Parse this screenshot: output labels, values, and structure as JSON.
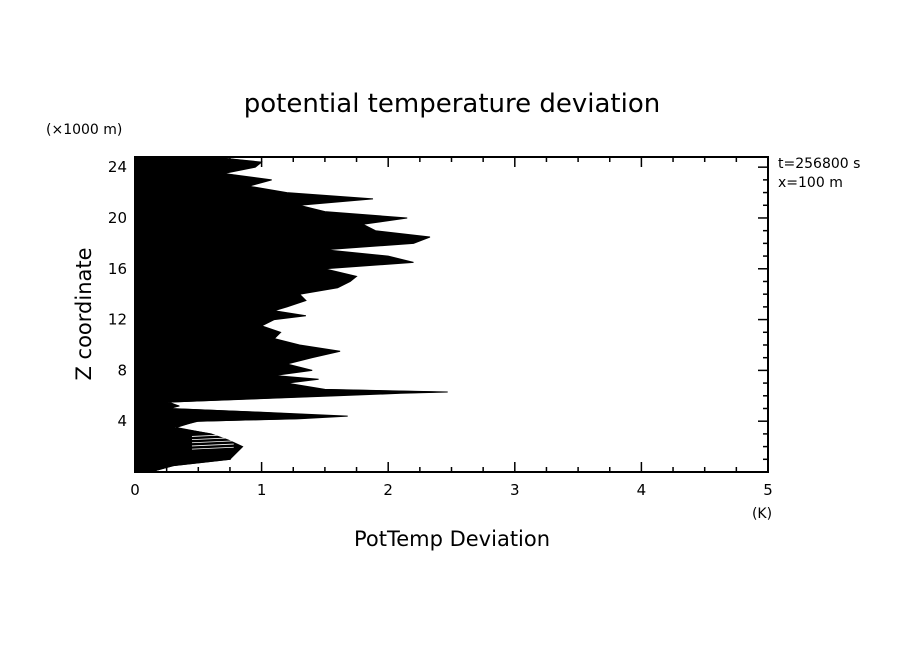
{
  "chart_data": {
    "type": "line",
    "title": "potential temperature deviation",
    "xlabel": "PotTemp Deviation",
    "ylabel": "Z coordinate",
    "x_unit": "(K)",
    "y_unit": "(×1000 m)",
    "xlim": [
      0,
      5
    ],
    "ylim": [
      0,
      24.8
    ],
    "xticks": [
      0,
      1,
      2,
      3,
      4,
      5
    ],
    "yticks": [
      4,
      8,
      12,
      16,
      20,
      24
    ],
    "grid": false,
    "annotations": [
      "t=256800 s",
      "x=100 m"
    ],
    "profile_max": [
      [
        0.0,
        0.12
      ],
      [
        0.5,
        0.3
      ],
      [
        1.0,
        0.75
      ],
      [
        1.5,
        0.8
      ],
      [
        2.0,
        0.85
      ],
      [
        2.5,
        0.74
      ],
      [
        3.0,
        0.6
      ],
      [
        3.5,
        0.3
      ],
      [
        4.0,
        0.5
      ],
      [
        4.2,
        1.3
      ],
      [
        4.4,
        1.68
      ],
      [
        4.7,
        1.0
      ],
      [
        5.0,
        0.25
      ],
      [
        5.2,
        0.35
      ],
      [
        5.5,
        0.25
      ],
      [
        6.0,
        1.6
      ],
      [
        6.2,
        2.1
      ],
      [
        6.3,
        2.47
      ],
      [
        6.5,
        1.5
      ],
      [
        7.0,
        1.2
      ],
      [
        7.3,
        1.45
      ],
      [
        7.6,
        1.1
      ],
      [
        8.0,
        1.4
      ],
      [
        8.5,
        1.2
      ],
      [
        9.0,
        1.4
      ],
      [
        9.5,
        1.62
      ],
      [
        10.0,
        1.3
      ],
      [
        10.5,
        1.1
      ],
      [
        11.0,
        1.15
      ],
      [
        11.5,
        1.0
      ],
      [
        12.0,
        1.1
      ],
      [
        12.3,
        1.35
      ],
      [
        12.7,
        1.1
      ],
      [
        13.0,
        1.2
      ],
      [
        13.5,
        1.35
      ],
      [
        14.0,
        1.3
      ],
      [
        14.5,
        1.6
      ],
      [
        15.0,
        1.7
      ],
      [
        15.4,
        1.75
      ],
      [
        16.0,
        1.5
      ],
      [
        16.5,
        2.2
      ],
      [
        17.0,
        2.0
      ],
      [
        17.5,
        1.5
      ],
      [
        18.0,
        2.2
      ],
      [
        18.5,
        2.33
      ],
      [
        19.0,
        1.9
      ],
      [
        19.5,
        1.8
      ],
      [
        20.0,
        2.15
      ],
      [
        20.5,
        1.5
      ],
      [
        21.0,
        1.3
      ],
      [
        21.5,
        1.88
      ],
      [
        22.0,
        1.2
      ],
      [
        22.5,
        0.9
      ],
      [
        23.0,
        1.08
      ],
      [
        23.5,
        0.7
      ],
      [
        24.0,
        0.95
      ],
      [
        24.4,
        1.0
      ],
      [
        24.8,
        0.6
      ]
    ]
  }
}
